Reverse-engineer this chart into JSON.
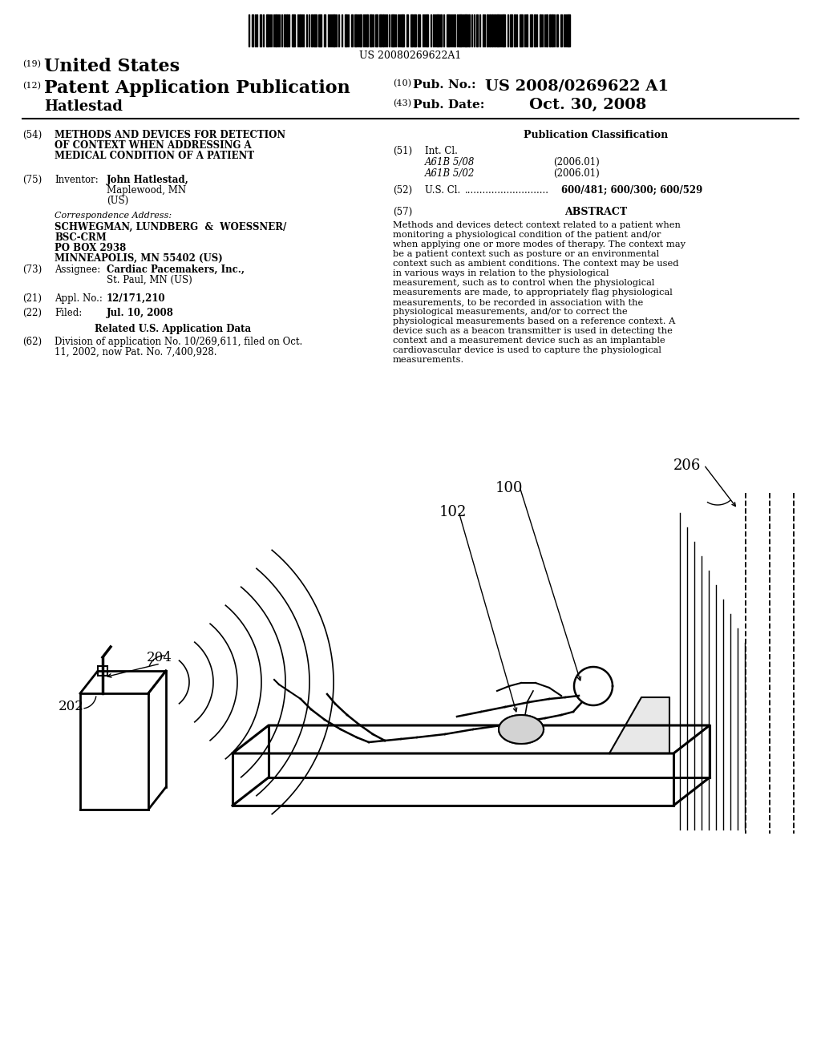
{
  "background_color": "#ffffff",
  "barcode_text": "US 20080269622A1",
  "header": {
    "tag19": "(19)",
    "united_states": "United States",
    "tag12": "(12)",
    "patent_app_pub": "Patent Application Publication",
    "tag10": "(10)",
    "pub_no_label": "Pub. No.:",
    "pub_no_value": "US 2008/0269622 A1",
    "inventor_name": "Hatlestad",
    "tag43": "(43)",
    "pub_date_label": "Pub. Date:",
    "pub_date_value": "Oct. 30, 2008"
  },
  "left_col": {
    "tag54": "(54)",
    "title_lines": [
      "METHODS AND DEVICES FOR DETECTION",
      "OF CONTEXT WHEN ADDRESSING A",
      "MEDICAL CONDITION OF A PATIENT"
    ],
    "tag75": "(75)",
    "inventor_label": "Inventor:",
    "inventor_bold": "John Hatlestad,",
    "inventor_rest1": "Maplewood, MN",
    "inventor_rest2": "(US)",
    "corr_address_label": "Correspondence Address:",
    "corr_address_lines": [
      "SCHWEGMAN, LUNDBERG  &  WOESSNER/",
      "BSC-CRM",
      "PO BOX 2938",
      "MINNEAPOLIS, MN 55402 (US)"
    ],
    "tag73": "(73)",
    "assignee_label": "Assignee:",
    "assignee_bold": "Cardiac Pacemakers, Inc.,",
    "assignee_rest": "St. Paul, MN (US)",
    "tag21": "(21)",
    "appl_no_label": "Appl. No.:",
    "appl_no_value": "12/171,210",
    "tag22": "(22)",
    "filed_label": "Filed:",
    "filed_value": "Jul. 10, 2008",
    "related_data_header": "Related U.S. Application Data",
    "tag62": "(62)",
    "division_lines": [
      "Division of application No. 10/269,611, filed on Oct.",
      "11, 2002, now Pat. No. 7,400,928."
    ]
  },
  "right_col": {
    "pub_class_header": "Publication Classification",
    "int_cl_label": "Int. Cl.",
    "int_cl_1": "A61B 5/08",
    "int_cl_1_date": "(2006.01)",
    "int_cl_2": "A61B 5/02",
    "int_cl_2_date": "(2006.01)",
    "us_cl_label": "U.S. Cl.",
    "us_cl_dots": "............................",
    "us_cl_value": "600/481; 600/300; 600/529",
    "abstract_header": "ABSTRACT",
    "abstract_text": "Methods and devices detect context related to a patient when monitoring a physiological condition of the patient and/or when applying one or more modes of therapy. The context may be a patient context such as posture or an environmental context such as ambient conditions. The context may be used in various ways in relation to the physiological measurement, such as to control when the physiological measurements are made, to appropriately flag physiological measurements, to be recorded in association with the physiological measurements, and/or to correct the physiological measurements based on a reference context. A device such as a beacon transmitter is used in detecting the context and a measurement device such as an implantable cardiovascular device is used to capture the physiological measurements."
  },
  "diagram_labels": {
    "label_202": "202",
    "label_204": "204",
    "label_100": "100",
    "label_102": "102",
    "label_206": "206"
  }
}
